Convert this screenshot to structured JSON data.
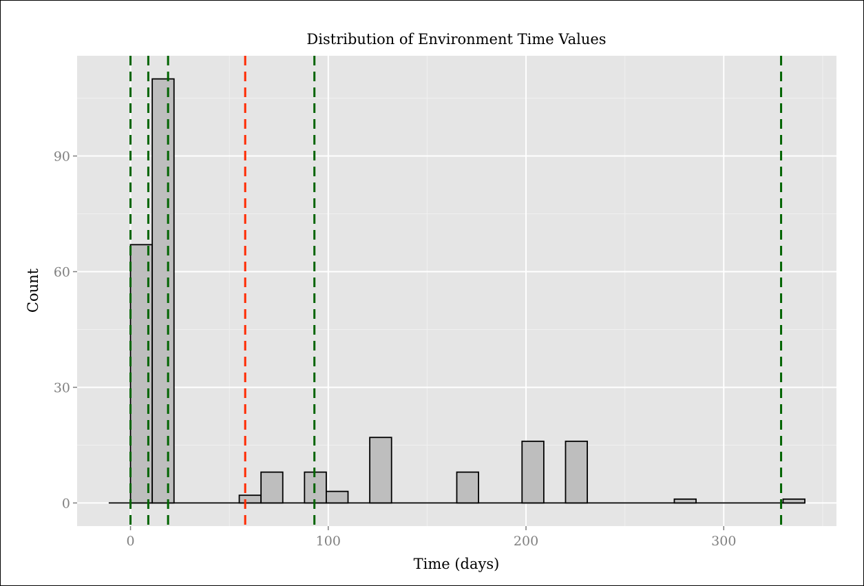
{
  "chart_data": {
    "type": "bar",
    "title": "Distribution of Environment Time Values",
    "xlabel": "Time (days)",
    "ylabel": "Count",
    "xlim": [
      -27,
      357
    ],
    "ylim": [
      -6,
      116
    ],
    "x_ticks": [
      0,
      100,
      200,
      300
    ],
    "y_ticks": [
      0,
      30,
      60,
      90
    ],
    "x_tick_labels": [
      "0",
      "100",
      "200",
      "300"
    ],
    "y_tick_labels": [
      "0",
      "30",
      "60",
      "90"
    ],
    "grid": true,
    "bin_width": 11,
    "bins": [
      {
        "x": 5.5,
        "count": 67
      },
      {
        "x": 16.5,
        "count": 110
      },
      {
        "x": 60.5,
        "count": 2
      },
      {
        "x": 71.5,
        "count": 8
      },
      {
        "x": 93.5,
        "count": 8
      },
      {
        "x": 104.5,
        "count": 3
      },
      {
        "x": 126.5,
        "count": 17
      },
      {
        "x": 170.5,
        "count": 8
      },
      {
        "x": 203.5,
        "count": 16
      },
      {
        "x": 225.5,
        "count": 16
      },
      {
        "x": 280.5,
        "count": 1
      },
      {
        "x": 335.5,
        "count": 1
      }
    ],
    "baseline_range": [
      -11,
      341
    ],
    "vlines": [
      {
        "x": 0,
        "color": "#006400",
        "style": "dashed"
      },
      {
        "x": 9,
        "color": "#006400",
        "style": "dashed"
      },
      {
        "x": 19,
        "color": "#006400",
        "style": "dashed"
      },
      {
        "x": 58,
        "color": "#ff2a00",
        "style": "dashed"
      },
      {
        "x": 93,
        "color": "#006400",
        "style": "dashed"
      },
      {
        "x": 329,
        "color": "#006400",
        "style": "dashed"
      }
    ],
    "colors": {
      "panel": "#e5e5e5",
      "grid_major": "#ffffff",
      "grid_minor": "#f0f0f0",
      "bar_fill": "#bebebe",
      "bar_stroke": "#000000"
    }
  }
}
